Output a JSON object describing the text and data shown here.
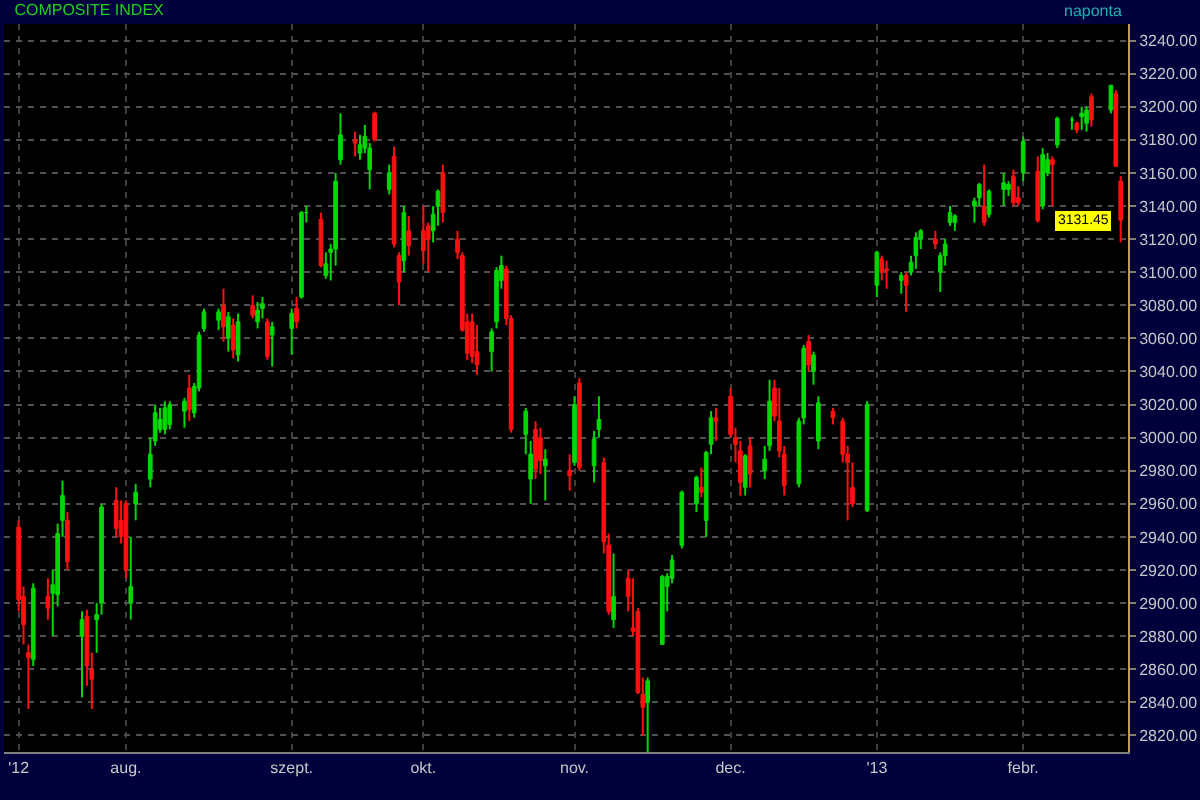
{
  "chart_data": {
    "type": "candlestick",
    "title": "COMPOSITE INDEX",
    "annotations": [
      "naponta",
      {
        "text": "3131.45",
        "x": "2013-02-21",
        "y": 3131.45
      }
    ],
    "x": [
      "2012-07-10",
      "2012-07-11",
      "2012-07-12",
      "2012-07-13",
      "2012-07-16",
      "2012-07-17",
      "2012-07-18",
      "2012-07-19",
      "2012-07-20",
      "2012-07-23",
      "2012-07-24",
      "2012-07-25",
      "2012-07-26",
      "2012-07-27",
      "2012-07-30",
      "2012-07-31",
      "2012-08-01",
      "2012-08-02",
      "2012-08-03",
      "2012-08-06",
      "2012-08-07",
      "2012-08-08",
      "2012-08-09",
      "2012-08-10",
      "2012-08-13",
      "2012-08-14",
      "2012-08-15",
      "2012-08-16",
      "2012-08-17",
      "2012-08-20",
      "2012-08-21",
      "2012-08-22",
      "2012-08-23",
      "2012-08-24",
      "2012-08-27",
      "2012-08-28",
      "2012-08-29",
      "2012-08-30",
      "2012-08-31",
      "2012-09-04",
      "2012-09-05",
      "2012-09-06",
      "2012-09-07",
      "2012-09-10",
      "2012-09-11",
      "2012-09-12",
      "2012-09-13",
      "2012-09-14",
      "2012-09-17",
      "2012-09-18",
      "2012-09-19",
      "2012-09-20",
      "2012-09-21",
      "2012-09-24",
      "2012-09-25",
      "2012-09-26",
      "2012-09-27",
      "2012-09-28",
      "2012-10-01",
      "2012-10-02",
      "2012-10-03",
      "2012-10-04",
      "2012-10-05",
      "2012-10-08",
      "2012-10-09",
      "2012-10-10",
      "2012-10-11",
      "2012-10-12",
      "2012-10-15",
      "2012-10-16",
      "2012-10-17",
      "2012-10-18",
      "2012-10-19",
      "2012-10-22",
      "2012-10-23",
      "2012-10-24",
      "2012-10-25",
      "2012-10-26",
      "2012-10-31",
      "2012-11-01",
      "2012-11-02",
      "2012-11-05",
      "2012-11-06",
      "2012-11-07",
      "2012-11-08",
      "2012-11-09",
      "2012-11-12",
      "2012-11-13",
      "2012-11-14",
      "2012-11-15",
      "2012-11-16",
      "2012-11-19",
      "2012-11-20",
      "2012-11-21",
      "2012-11-23",
      "2012-11-26",
      "2012-11-27",
      "2012-11-28",
      "2012-11-29",
      "2012-11-30",
      "2012-12-03",
      "2012-12-04",
      "2012-12-05",
      "2012-12-06",
      "2012-12-07",
      "2012-12-10",
      "2012-12-11",
      "2012-12-12",
      "2012-12-13",
      "2012-12-14",
      "2012-12-17",
      "2012-12-18",
      "2012-12-19",
      "2012-12-20",
      "2012-12-21",
      "2012-12-24",
      "2012-12-26",
      "2012-12-27",
      "2012-12-28",
      "2012-12-31",
      "2013-01-02",
      "2013-01-03",
      "2013-01-04",
      "2013-01-07",
      "2013-01-08",
      "2013-01-09",
      "2013-01-10",
      "2013-01-11",
      "2013-01-14",
      "2013-01-15",
      "2013-01-16",
      "2013-01-17",
      "2013-01-18",
      "2013-01-22",
      "2013-01-23",
      "2013-01-24",
      "2013-01-25",
      "2013-01-28",
      "2013-01-29",
      "2013-01-30",
      "2013-01-31",
      "2013-02-01",
      "2013-02-04",
      "2013-02-05",
      "2013-02-06",
      "2013-02-07",
      "2013-02-08",
      "2013-02-11",
      "2013-02-12",
      "2013-02-13",
      "2013-02-14",
      "2013-02-15",
      "2013-02-19",
      "2013-02-20",
      "2013-02-21"
    ],
    "ohlc": [
      [
        2946,
        2950,
        2895,
        2902
      ],
      [
        2904,
        2910,
        2875,
        2887
      ],
      [
        2870,
        2875,
        2836,
        2867
      ],
      [
        2866,
        2912,
        2862,
        2909
      ],
      [
        2904,
        2915,
        2890,
        2897
      ],
      [
        2906,
        2920,
        2880,
        2911
      ],
      [
        2905,
        2948,
        2898,
        2942
      ],
      [
        2950,
        2974,
        2940,
        2965
      ],
      [
        2950,
        2955,
        2920,
        2925
      ],
      [
        2880,
        2895,
        2843,
        2890
      ],
      [
        2892,
        2896,
        2850,
        2862
      ],
      [
        2860,
        2870,
        2836,
        2854
      ],
      [
        2890,
        2900,
        2870,
        2893
      ],
      [
        2900,
        2960,
        2893,
        2958
      ],
      [
        2962,
        2970,
        2940,
        2945
      ],
      [
        2950,
        2962,
        2936,
        2940
      ],
      [
        2960,
        2962,
        2915,
        2920
      ],
      [
        2900,
        2940,
        2890,
        2910
      ],
      [
        2960,
        2972,
        2950,
        2967
      ],
      [
        2975,
        3000,
        2970,
        2990
      ],
      [
        2998,
        3020,
        2995,
        3015
      ],
      [
        3005,
        3018,
        3003,
        3011
      ],
      [
        3005,
        3022,
        3002,
        3018
      ],
      [
        3008,
        3022,
        3005,
        3020
      ],
      [
        3016,
        3024,
        3006,
        3022
      ],
      [
        3030,
        3038,
        3010,
        3017
      ],
      [
        3015,
        3033,
        3012,
        3031
      ],
      [
        3030,
        3064,
        3028,
        3062
      ],
      [
        3066,
        3078,
        3064,
        3076
      ],
      [
        3071,
        3078,
        3065,
        3076
      ],
      [
        3080,
        3090,
        3058,
        3067
      ],
      [
        3060,
        3076,
        3052,
        3073
      ],
      [
        3068,
        3072,
        3048,
        3053
      ],
      [
        3050,
        3075,
        3046,
        3070
      ],
      [
        3080,
        3086,
        3072,
        3074
      ],
      [
        3070,
        3082,
        3066,
        3077
      ],
      [
        3078,
        3085,
        3072,
        3081
      ],
      [
        3070,
        3072,
        3047,
        3049
      ],
      [
        3062,
        3070,
        3043,
        3067
      ],
      [
        3066,
        3078,
        3050,
        3075
      ],
      [
        3078,
        3085,
        3066,
        3070
      ],
      [
        3085,
        3137,
        3084,
        3136
      ],
      [
        3136,
        3140,
        3130,
        3136
      ],
      [
        3132,
        3136,
        3103,
        3104
      ],
      [
        3098,
        3112,
        3096,
        3105
      ],
      [
        3112,
        3117,
        3095,
        3114
      ],
      [
        3114,
        3160,
        3104,
        3155
      ],
      [
        3168,
        3196,
        3165,
        3183
      ],
      [
        3180,
        3185,
        3170,
        3178
      ],
      [
        3172,
        3183,
        3168,
        3177
      ],
      [
        3175,
        3189,
        3172,
        3182
      ],
      [
        3162,
        3178,
        3150,
        3175
      ],
      [
        3196,
        3197,
        3179,
        3180
      ],
      [
        3150,
        3165,
        3147,
        3160
      ],
      [
        3170,
        3176,
        3115,
        3117
      ],
      [
        3110,
        3112,
        3080,
        3094
      ],
      [
        3107,
        3140,
        3100,
        3136
      ],
      [
        3125,
        3134,
        3110,
        3116
      ],
      [
        3125,
        3140,
        3105,
        3113
      ],
      [
        3128,
        3130,
        3100,
        3120
      ],
      [
        3125,
        3140,
        3118,
        3135
      ],
      [
        3140,
        3150,
        3128,
        3149
      ],
      [
        3160,
        3165,
        3130,
        3136
      ],
      [
        3120,
        3125,
        3108,
        3112
      ],
      [
        3110,
        3112,
        3064,
        3065
      ],
      [
        3070,
        3075,
        3047,
        3051
      ],
      [
        3070,
        3075,
        3045,
        3049
      ],
      [
        3052,
        3068,
        3038,
        3044
      ],
      [
        3052,
        3066,
        3040,
        3064
      ],
      [
        3070,
        3103,
        3066,
        3101
      ],
      [
        3095,
        3110,
        3090,
        3104
      ],
      [
        3102,
        3104,
        3068,
        3072
      ],
      [
        3072,
        3074,
        3003,
        3005
      ],
      [
        3002,
        3018,
        2990,
        3016
      ],
      [
        2975,
        2998,
        2960,
        2990
      ],
      [
        3005,
        3010,
        2975,
        2981
      ],
      [
        3000,
        3006,
        2978,
        2986
      ],
      [
        2983,
        2993,
        2962,
        2987
      ],
      [
        2980,
        2990,
        2968,
        2977
      ],
      [
        2985,
        3025,
        2983,
        3020
      ],
      [
        3033,
        3036,
        2980,
        2982
      ],
      [
        2983,
        3004,
        2973,
        2999
      ],
      [
        3005,
        3025,
        3000,
        3011
      ],
      [
        2985,
        2988,
        2930,
        2937
      ],
      [
        2935,
        2942,
        2893,
        2895
      ],
      [
        2890,
        2930,
        2885,
        2904
      ],
      [
        2915,
        2920,
        2895,
        2904
      ],
      [
        2885,
        2915,
        2880,
        2883
      ],
      [
        2895,
        2897,
        2845,
        2846
      ],
      [
        2845,
        2855,
        2820,
        2837
      ],
      [
        2840,
        2855,
        2810,
        2853
      ],
      [
        2875,
        2917,
        2875,
        2916
      ],
      [
        2910,
        2918,
        2895,
        2916
      ],
      [
        2915,
        2929,
        2912,
        2926
      ],
      [
        2935,
        2968,
        2933,
        2967
      ],
      [
        2960,
        2977,
        2955,
        2976
      ],
      [
        2970,
        2982,
        2964,
        2967
      ],
      [
        2950,
        2992,
        2940,
        2991
      ],
      [
        2996,
        3016,
        2990,
        3012
      ],
      [
        3012,
        3018,
        2998,
        3010
      ],
      [
        3025,
        3030,
        3000,
        3002
      ],
      [
        3000,
        3006,
        2985,
        2996
      ],
      [
        2992,
        2998,
        2965,
        2973
      ],
      [
        2970,
        2990,
        2965,
        2989
      ],
      [
        2995,
        3000,
        2970,
        2978
      ],
      [
        2980,
        2995,
        2975,
        2987
      ],
      [
        2995,
        3035,
        2992,
        3022
      ],
      [
        3030,
        3035,
        3010,
        3013
      ],
      [
        3010,
        3030,
        2988,
        2992
      ],
      [
        2990,
        2995,
        2965,
        2971
      ],
      [
        2972,
        3012,
        2970,
        3010
      ],
      [
        3012,
        3056,
        3008,
        3054
      ],
      [
        3058,
        3062,
        3040,
        3044
      ],
      [
        3040,
        3052,
        3032,
        3050
      ],
      [
        2998,
        3025,
        2993,
        3021
      ],
      [
        3016,
        3018,
        3008,
        3012
      ],
      [
        3010,
        3012,
        2985,
        2990
      ],
      [
        2990,
        2995,
        2950,
        2985
      ],
      [
        2970,
        2985,
        2958,
        2960
      ],
      [
        2956,
        3022,
        2955,
        3020
      ],
      [
        3092,
        3113,
        3085,
        3112
      ],
      [
        3108,
        3110,
        3095,
        3100
      ],
      [
        3102,
        3107,
        3090,
        3101
      ],
      [
        3095,
        3100,
        3087,
        3098
      ],
      [
        3098,
        3100,
        3076,
        3092
      ],
      [
        3100,
        3110,
        3098,
        3106
      ],
      [
        3110,
        3124,
        3102,
        3121
      ],
      [
        3120,
        3126,
        3114,
        3125
      ],
      [
        3120,
        3125,
        3114,
        3117
      ],
      [
        3100,
        3112,
        3088,
        3110
      ],
      [
        3110,
        3120,
        3104,
        3117
      ],
      [
        3130,
        3140,
        3128,
        3136
      ],
      [
        3130,
        3135,
        3125,
        3134
      ],
      [
        3140,
        3145,
        3130,
        3143
      ],
      [
        3145,
        3154,
        3140,
        3153
      ],
      [
        3140,
        3165,
        3128,
        3130
      ],
      [
        3135,
        3150,
        3133,
        3149
      ],
      [
        3150,
        3160,
        3140,
        3154
      ],
      [
        3150,
        3155,
        3146,
        3153
      ],
      [
        3158,
        3162,
        3140,
        3142
      ],
      [
        3145,
        3152,
        3140,
        3142
      ],
      [
        3160,
        3182,
        3155,
        3179
      ],
      [
        3161,
        3170,
        3130,
        3131
      ],
      [
        3140,
        3175,
        3138,
        3171
      ],
      [
        3160,
        3172,
        3158,
        3168
      ],
      [
        3168,
        3170,
        3140,
        3165
      ],
      [
        3177,
        3194,
        3175,
        3193
      ],
      [
        3192,
        3194,
        3186,
        3192
      ],
      [
        3190,
        3191,
        3184,
        3186
      ],
      [
        3194,
        3200,
        3186,
        3196
      ],
      [
        3190,
        3200,
        3185,
        3198
      ],
      [
        3206,
        3208,
        3188,
        3192
      ],
      [
        3198,
        3213,
        3196,
        3213
      ],
      [
        3208,
        3210,
        3164,
        3164
      ],
      [
        3155,
        3158,
        3118,
        3131.45
      ]
    ],
    "xlim": [
      "2012-07-07",
      "2013-02-22T12:00"
    ],
    "xticks": [
      {
        "value": "2012-07-10",
        "label": "'12"
      },
      {
        "value": "2012-08-01",
        "label": "aug."
      },
      {
        "value": "2012-09-04",
        "label": "szept."
      },
      {
        "value": "2012-10-01",
        "label": "okt."
      },
      {
        "value": "2012-11-01",
        "label": "nov."
      },
      {
        "value": "2012-12-03",
        "label": "dec."
      },
      {
        "value": "2013-01-02",
        "label": "'13"
      },
      {
        "value": "2013-02-01",
        "label": "febr."
      }
    ],
    "ylim": [
      2810,
      3250
    ],
    "yticks": [
      {
        "value": 2820,
        "label": "2820.00"
      },
      {
        "value": 2840,
        "label": "2840.00"
      },
      {
        "value": 2860,
        "label": "2860.00"
      },
      {
        "value": 2880,
        "label": "2880.00"
      },
      {
        "value": 2900,
        "label": "2900.00"
      },
      {
        "value": 2920,
        "label": "2920.00"
      },
      {
        "value": 2940,
        "label": "2940.00"
      },
      {
        "value": 2960,
        "label": "2960.00"
      },
      {
        "value": 2980,
        "label": "2980.00"
      },
      {
        "value": 3000,
        "label": "3000.00"
      },
      {
        "value": 3020,
        "label": "3020.00"
      },
      {
        "value": 3040,
        "label": "3040.00"
      },
      {
        "value": 3060,
        "label": "3060.00"
      },
      {
        "value": 3080,
        "label": "3080.00"
      },
      {
        "value": 3100,
        "label": "3100.00"
      },
      {
        "value": 3120,
        "label": "3120.00"
      },
      {
        "value": 3140,
        "label": "3140.00"
      },
      {
        "value": 3160,
        "label": "3160.00"
      },
      {
        "value": 3180,
        "label": "3180.00"
      },
      {
        "value": 3200,
        "label": "3200.00"
      },
      {
        "value": 3220,
        "label": "3220.00"
      },
      {
        "value": 3240,
        "label": "3240.00"
      }
    ],
    "grid": true
  }
}
